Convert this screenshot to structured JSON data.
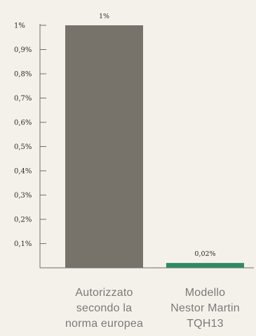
{
  "chart_data": {
    "type": "bar",
    "title": "",
    "xlabel": "",
    "ylabel": "",
    "ylim": [
      0,
      1
    ],
    "yticks": [
      {
        "value": 1,
        "label": "1%"
      },
      {
        "value": 0.9,
        "label": "0,9%"
      },
      {
        "value": 0.8,
        "label": "0,8%"
      },
      {
        "value": 0.7,
        "label": "0,7%"
      },
      {
        "value": 0.6,
        "label": "0,6%"
      },
      {
        "value": 0.5,
        "label": "0,5%"
      },
      {
        "value": 0.4,
        "label": "0,4%"
      },
      {
        "value": 0.3,
        "label": "0,3%"
      },
      {
        "value": 0.2,
        "label": "0,2%"
      },
      {
        "value": 0.1,
        "label": "0,1%"
      }
    ],
    "categories": [
      [
        "Autorizzato",
        "secondo la",
        "norma europea"
      ],
      [
        "Modello",
        "Nestor Martin",
        "TQH13"
      ]
    ],
    "values": [
      1,
      0.02
    ],
    "value_labels": [
      "1%",
      "0,02%"
    ],
    "colors": [
      "#77736a",
      "#2e8c62"
    ],
    "grid": false,
    "legend": "none"
  }
}
